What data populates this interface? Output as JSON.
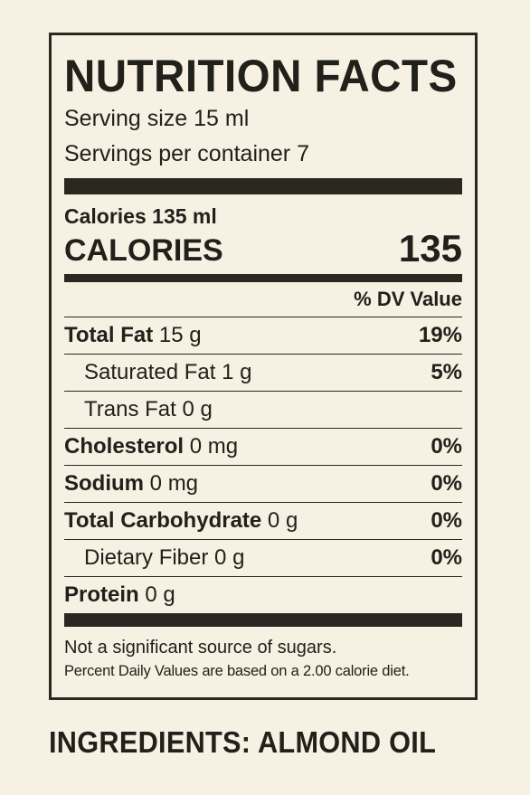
{
  "label": {
    "title": "NUTRITION FACTS",
    "serving_size": "Serving size 15 ml",
    "servings_per_container": "Servings per container 7",
    "calories_small": "Calories 135 ml",
    "calories_label": "CALORIES",
    "calories_value": "135",
    "dv_header": "% DV Value",
    "nutrients": [
      {
        "name": "Total Fat",
        "amount": "15 g",
        "dv": "19%"
      },
      {
        "name": "Saturated Fat",
        "amount": "1 g",
        "dv": "5%"
      },
      {
        "name": "Trans Fat",
        "amount": "0 g",
        "dv": ""
      },
      {
        "name": "Cholesterol",
        "amount": "0 mg",
        "dv": "0%"
      },
      {
        "name": "Sodium",
        "amount": "0 mg",
        "dv": "0%"
      },
      {
        "name": "Total Carbohydrate",
        "amount": "0 g",
        "dv": "0%"
      },
      {
        "name": "Dietary Fiber",
        "amount": "0 g",
        "dv": "0%"
      },
      {
        "name": "Protein",
        "amount": "0 g",
        "dv": ""
      }
    ],
    "footnote_sugars": "Not a significant source of sugars.",
    "footnote_dv": "Percent Daily Values are based on a 2.00 calorie diet."
  },
  "ingredients": "INGREDIENTS: ALMOND OIL",
  "colors": {
    "background": "#f7f1e3",
    "ink": "#22201a"
  }
}
